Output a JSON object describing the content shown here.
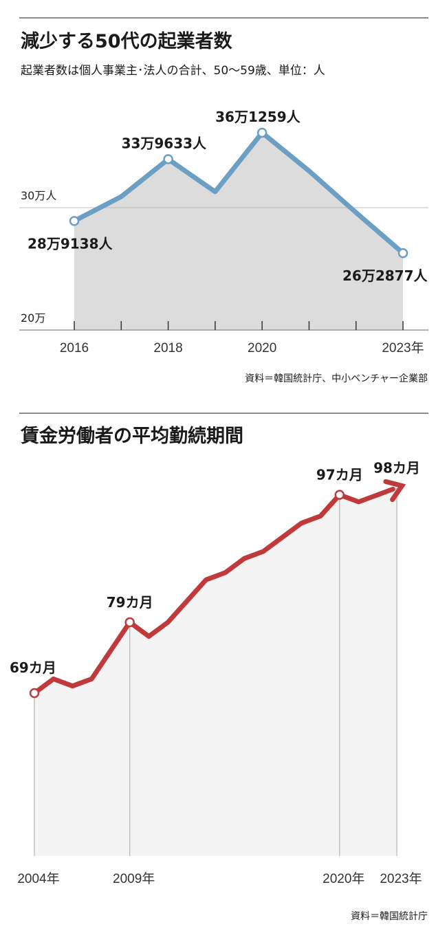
{
  "chart_data": [
    {
      "type": "area",
      "title": "減少する50代の起業者数",
      "subtitle": "起業者数は個人事業主･法人の合計、50〜59歳、単位：人",
      "source": "資料＝韓国統計庁、中小ベンチャー企業部",
      "x": [
        2016,
        2017,
        2018,
        2019,
        2020,
        2021,
        2022,
        2023
      ],
      "values": [
        289138,
        309000,
        339633,
        313000,
        361259,
        330000,
        296000,
        262877
      ],
      "ylim": [
        200000,
        400000
      ],
      "y_ticks": [
        {
          "value": 200000,
          "label": "20万"
        },
        {
          "value": 300000,
          "label": "30万人"
        }
      ],
      "x_tick_labels": [
        {
          "x": 2016,
          "label": "2016"
        },
        {
          "x": 2018,
          "label": "2018"
        },
        {
          "x": 2020,
          "label": "2020"
        },
        {
          "x": 2023,
          "label": "2023年"
        }
      ],
      "data_labels": [
        {
          "x": 2016,
          "label": "28万9138人",
          "pos": "below-left"
        },
        {
          "x": 2018,
          "label": "33万9633人",
          "pos": "above-left"
        },
        {
          "x": 2020,
          "label": "36万1259人",
          "pos": "above-left"
        },
        {
          "x": 2023,
          "label": "26万2877人",
          "pos": "below"
        }
      ],
      "color": "#6b9fc4",
      "fill": "#dcdcdc"
    },
    {
      "type": "area",
      "title": "賃金労働者の平均勤続期間",
      "source": "資料＝韓国統計庁",
      "x": [
        2004,
        2005,
        2006,
        2007,
        2008,
        2009,
        2010,
        2011,
        2012,
        2013,
        2014,
        2015,
        2016,
        2017,
        2018,
        2019,
        2020,
        2021,
        2022,
        2023
      ],
      "values": [
        69,
        71,
        70,
        71,
        75,
        79,
        77,
        79,
        82,
        85,
        86,
        88,
        89,
        91,
        93,
        94,
        97,
        96,
        97,
        98
      ],
      "ylim": [
        50,
        100
      ],
      "x_tick_labels": [
        {
          "x": 2004,
          "label": "2004年"
        },
        {
          "x": 2009,
          "label": "2009年"
        },
        {
          "x": 2020,
          "label": "2020年"
        },
        {
          "x": 2023,
          "label": "2023年"
        }
      ],
      "data_labels": [
        {
          "x": 2004,
          "label": "69カ月",
          "pos": "above"
        },
        {
          "x": 2009,
          "label": "79カ月",
          "pos": "above"
        },
        {
          "x": 2020,
          "label": "97カ月",
          "pos": "above"
        },
        {
          "x": 2023,
          "label": "98カ月",
          "pos": "above"
        }
      ],
      "color": "#c0393b",
      "fill": "#f4f4f4"
    }
  ]
}
